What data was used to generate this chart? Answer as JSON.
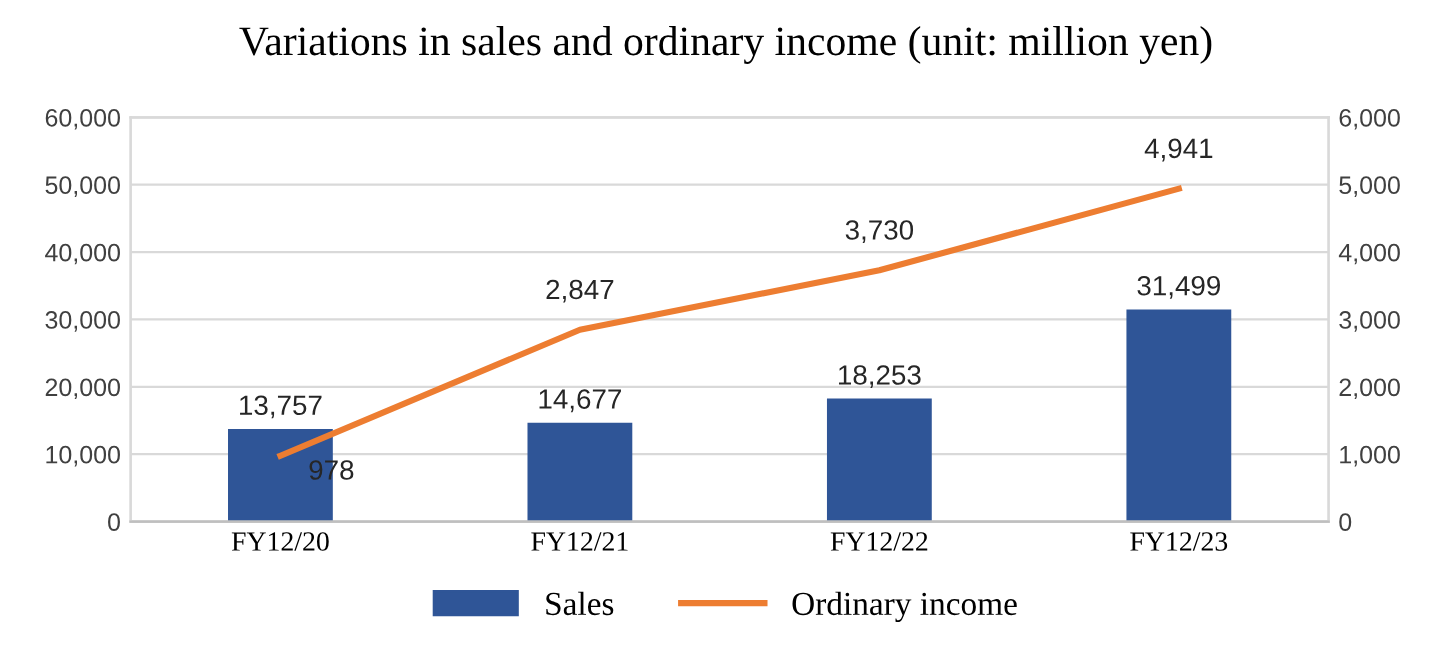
{
  "chart_data": {
    "type": "bar",
    "title": "Variations in sales and ordinary income (unit: million yen)",
    "categories": [
      "FY12/20",
      "FY12/21",
      "FY12/22",
      "FY12/23"
    ],
    "series": [
      {
        "name": "Sales",
        "color": "#2f5597",
        "values": [
          13757,
          14677,
          18253,
          31499
        ],
        "value_labels": [
          "13,757",
          "14,677",
          "18,253",
          "31,499"
        ]
      },
      {
        "name": "Ordinary income",
        "type": "line",
        "axis": "y2",
        "color": "#ed7d31",
        "values": [
          978,
          2847,
          3730,
          4941
        ],
        "value_labels": [
          "978",
          "2,847",
          "3,730",
          "4,941"
        ],
        "marker": "none",
        "line_style": "solid"
      }
    ],
    "ylim": [
      0,
      60000
    ],
    "yticks": [
      0,
      {
        "value": 10000,
        "label": "10,000"
      },
      {
        "value": 20000,
        "label": "20,000"
      },
      {
        "value": 30000,
        "label": "30,000"
      },
      {
        "value": 40000,
        "label": "40,000"
      },
      {
        "value": 50000,
        "label": "50,000"
      },
      {
        "value": 60000,
        "label": "60,000"
      }
    ],
    "y2lim": [
      0,
      6000
    ],
    "y2ticks": [
      0,
      {
        "value": 1000,
        "label": "1,000"
      },
      {
        "value": 2000,
        "label": "2,000"
      },
      {
        "value": 3000,
        "label": "3,000"
      },
      {
        "value": 4000,
        "label": "4,000"
      },
      {
        "value": 5000,
        "label": "5,000"
      },
      {
        "value": 6000,
        "label": "6,000"
      }
    ],
    "grid": "y",
    "legend": "bottom"
  }
}
